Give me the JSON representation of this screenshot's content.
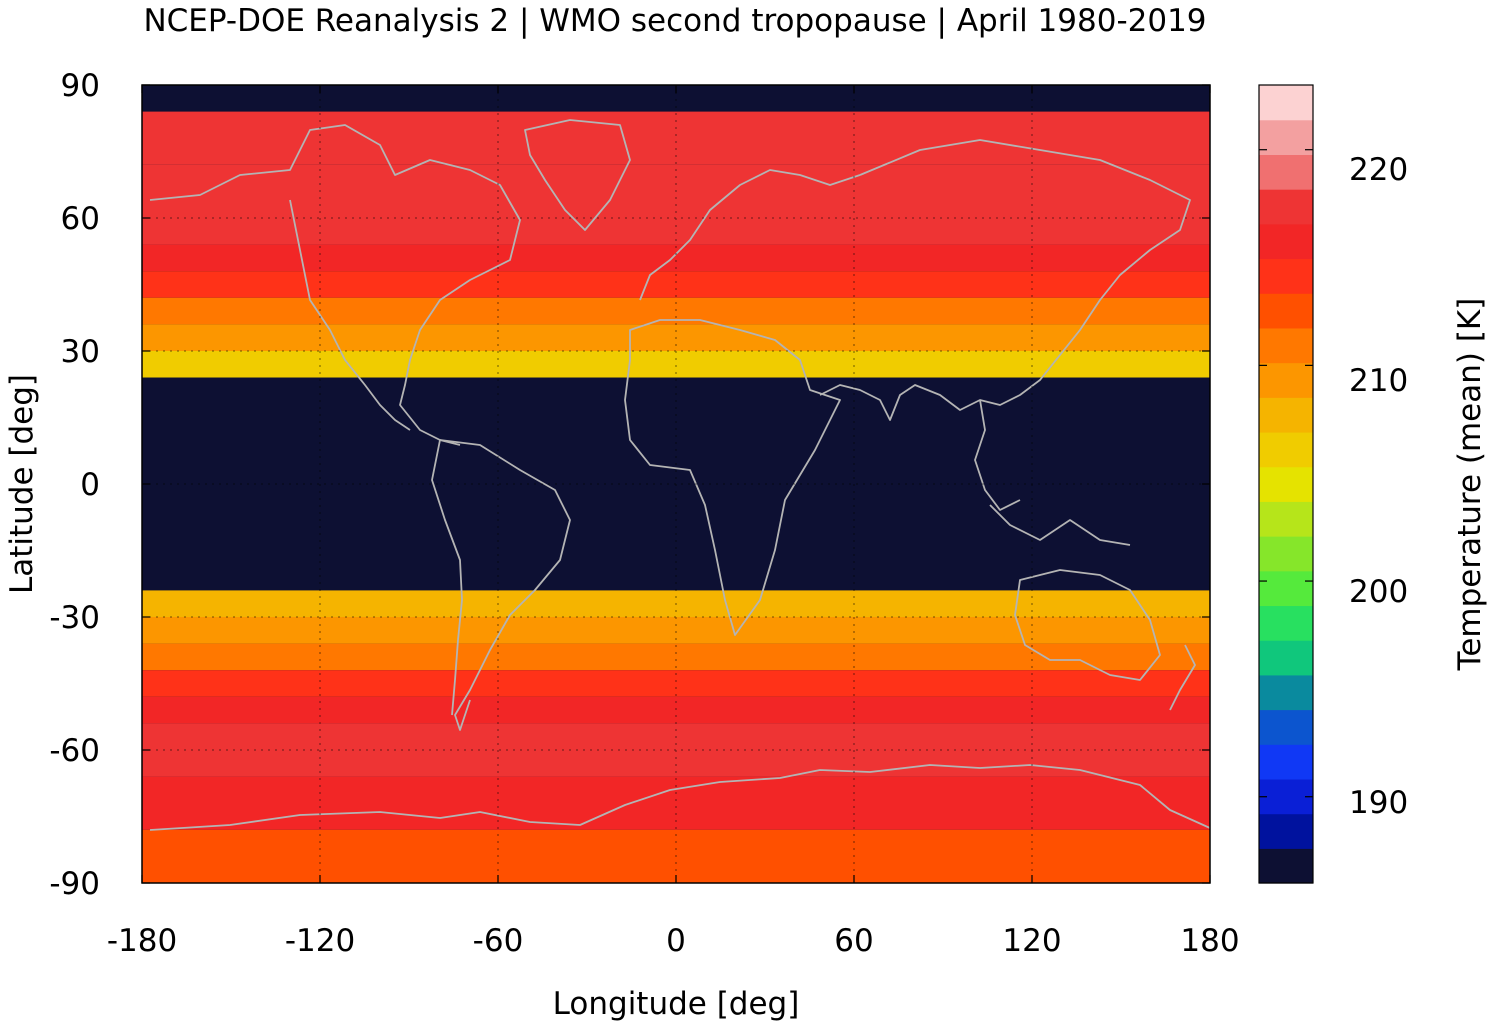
{
  "chart_data": {
    "type": "heatmap",
    "title": "NCEP-DOE Reanalysis 2 | WMO second tropopause | April 1980-2019",
    "xlabel": "Longitude [deg]",
    "ylabel": "Latitude [deg]",
    "colorbar_label": "Temperature (mean) [K]",
    "xlim": [
      -180,
      180
    ],
    "ylim": [
      -90,
      90
    ],
    "x_ticks": [
      "-180",
      "-120",
      "-60",
      "0",
      "60",
      "120",
      "180"
    ],
    "y_ticks": [
      "90",
      "60",
      "30",
      "0",
      "-30",
      "-60",
      "-90"
    ],
    "colorbar_ticks": [
      "190",
      "200",
      "210",
      "220"
    ],
    "colorbar_range": [
      186,
      223
    ],
    "grid": "dotted",
    "missing_color": "#0d1033",
    "coastline_color": "#b4b4b4",
    "colorbar_colors": [
      "#0d1033",
      "#00129e",
      "#0a1fd6",
      "#1038f5",
      "#0c55cf",
      "#0a8a9e",
      "#10c77c",
      "#28e060",
      "#55ea3c",
      "#86e62a",
      "#b6e51a",
      "#e5e300",
      "#f0cc00",
      "#f5b400",
      "#fc9600",
      "#ff7800",
      "#ff5000",
      "#ff3218",
      "#f22626",
      "#ee3434",
      "#f07070",
      "#f3a0a0",
      "#fcd2d2"
    ],
    "zonal_mean_bands": [
      {
        "lat_from": 90,
        "lat_to": 84,
        "value": "missing"
      },
      {
        "lat_from": 84,
        "lat_to": 72,
        "value": 218
      },
      {
        "lat_from": 72,
        "lat_to": 60,
        "value": 218
      },
      {
        "lat_from": 60,
        "lat_to": 54,
        "value": 217
      },
      {
        "lat_from": 54,
        "lat_to": 48,
        "value": 216
      },
      {
        "lat_from": 48,
        "lat_to": 42,
        "value": 214
      },
      {
        "lat_from": 42,
        "lat_to": 36,
        "value": 211
      },
      {
        "lat_from": 36,
        "lat_to": 30,
        "value": 209
      },
      {
        "lat_from": 30,
        "lat_to": 24,
        "value": 206
      },
      {
        "lat_from": 24,
        "lat_to": -24,
        "value": "missing"
      },
      {
        "lat_from": -24,
        "lat_to": -30,
        "value": 207
      },
      {
        "lat_from": -30,
        "lat_to": -36,
        "value": 209
      },
      {
        "lat_from": -36,
        "lat_to": -42,
        "value": 211
      },
      {
        "lat_from": -42,
        "lat_to": -48,
        "value": 214
      },
      {
        "lat_from": -48,
        "lat_to": -54,
        "value": 216
      },
      {
        "lat_from": -54,
        "lat_to": -60,
        "value": 217
      },
      {
        "lat_from": -60,
        "lat_to": -66,
        "value": 217
      },
      {
        "lat_from": -66,
        "lat_to": -78,
        "value": 215
      },
      {
        "lat_from": -78,
        "lat_to": -90,
        "value": 213
      }
    ]
  }
}
